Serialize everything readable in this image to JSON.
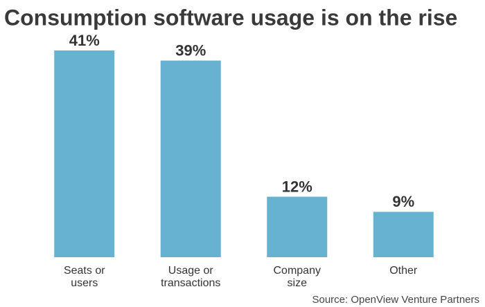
{
  "chart_data": {
    "type": "bar",
    "title": "Consumption software usage is on the rise",
    "categories": [
      "Seats or\nusers",
      "Usage or\ntransactions",
      "Company\nsize",
      "Other"
    ],
    "values": [
      41,
      39,
      12,
      9
    ],
    "value_labels": [
      "41%",
      "39%",
      "12%",
      "9%"
    ],
    "color": "#67b2d1",
    "source": "Source: OpenView Venture Partners"
  }
}
